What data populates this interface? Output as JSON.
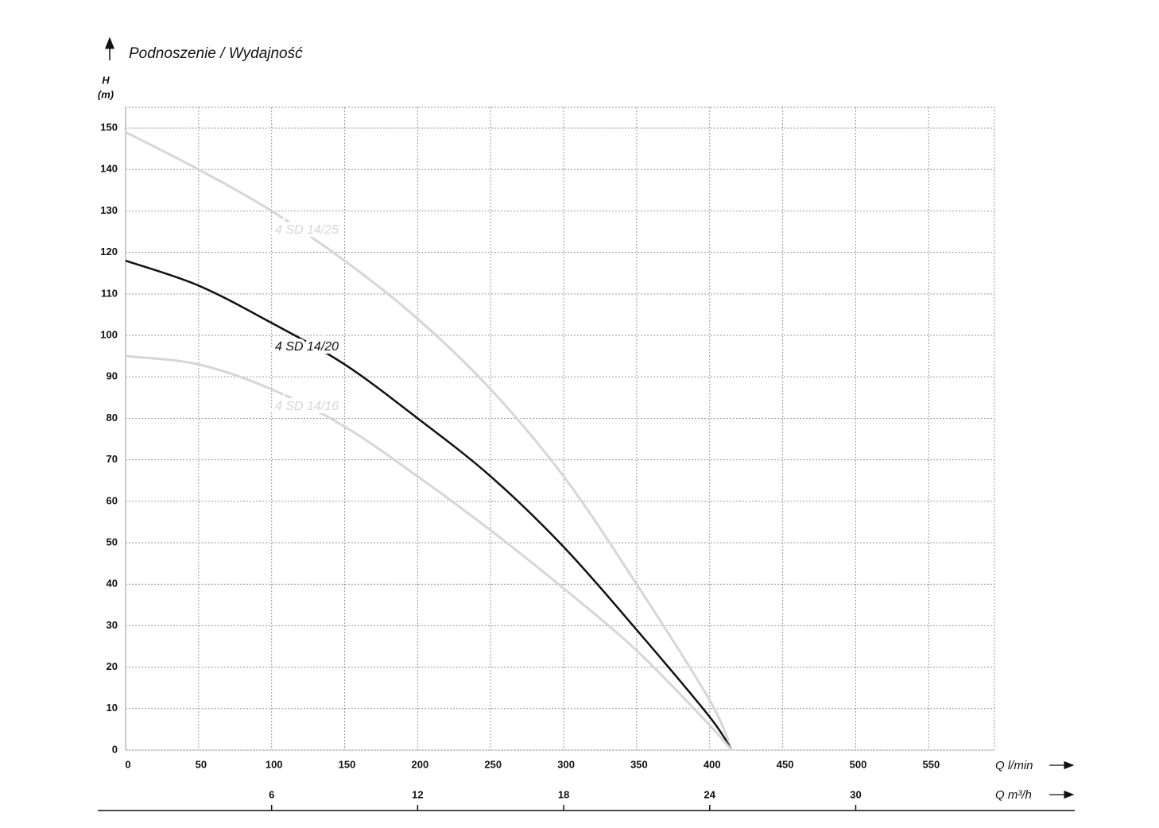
{
  "chart_data": {
    "type": "line",
    "title": "Podnoszenie / Wydajność",
    "y_label": "H",
    "y_unit": "(m)",
    "x_label": "Q l/min",
    "x2_label": "Q m³/h",
    "xlim": [
      0,
      595
    ],
    "xticks": [
      0,
      50,
      100,
      150,
      200,
      250,
      300,
      350,
      400,
      450,
      500,
      550
    ],
    "x2lim": [
      0,
      35.7
    ],
    "x2ticks": [
      6,
      12,
      18,
      24,
      30
    ],
    "ylim": [
      0,
      155
    ],
    "yticks": [
      0,
      10,
      20,
      30,
      40,
      50,
      60,
      70,
      80,
      90,
      100,
      110,
      120,
      130,
      140,
      150
    ],
    "grid": true,
    "x": [
      0,
      50,
      100,
      150,
      200,
      250,
      300,
      350,
      400,
      415
    ],
    "series": [
      {
        "name": "4 SD 14/25",
        "color": "#d6d6d6",
        "values": [
          149,
          140,
          130,
          118,
          104,
          87,
          66,
          40,
          12,
          0
        ]
      },
      {
        "name": "4 SD 14/20",
        "color": "#111111",
        "values": [
          118,
          112,
          103,
          93,
          80,
          66,
          49,
          29,
          8,
          0
        ]
      },
      {
        "name": "4 SD 14/16",
        "color": "#d6d6d6",
        "values": [
          95,
          93,
          87,
          78,
          66,
          53,
          39,
          24,
          6,
          0
        ]
      }
    ]
  }
}
